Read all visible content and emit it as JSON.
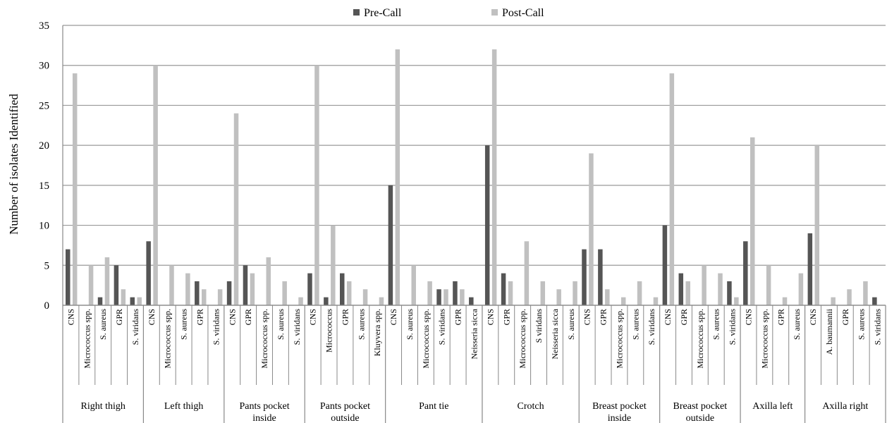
{
  "colors": {
    "pre": "#555555",
    "post": "#c0c0c0",
    "grid": "#999999",
    "axis": "#888888"
  },
  "chart_data": {
    "type": "bar",
    "title": "",
    "xlabel": "",
    "ylabel": "Number of isolates Identified",
    "ylim": [
      0,
      35
    ],
    "yticks": [
      0,
      5,
      10,
      15,
      20,
      25,
      30,
      35
    ],
    "grid": true,
    "legend_position": "top-center",
    "series": [
      {
        "name": "Pre-Call",
        "color": "#555555"
      },
      {
        "name": "Post-Call",
        "color": "#c0c0c0"
      }
    ],
    "groups": [
      {
        "name": "Right thigh",
        "items": [
          {
            "label": "CNS",
            "pre": 7,
            "post": 29
          },
          {
            "label": "Micrococcus spp.",
            "pre": 0,
            "post": 5
          },
          {
            "label": "S. aureus",
            "pre": 1,
            "post": 6
          },
          {
            "label": "GPR",
            "pre": 5,
            "post": 2
          },
          {
            "label": "S. viridans",
            "pre": 1,
            "post": 1
          }
        ]
      },
      {
        "name": "Left thigh",
        "items": [
          {
            "label": "CNS",
            "pre": 8,
            "post": 30
          },
          {
            "label": "Micrococcus spp.",
            "pre": 0,
            "post": 5
          },
          {
            "label": "S. aureus",
            "pre": 0,
            "post": 4
          },
          {
            "label": "GPR",
            "pre": 3,
            "post": 2
          },
          {
            "label": "S. viridans",
            "pre": 0,
            "post": 2
          }
        ]
      },
      {
        "name": "Pants pocket inside",
        "items": [
          {
            "label": "CNS",
            "pre": 3,
            "post": 24
          },
          {
            "label": "GPR",
            "pre": 5,
            "post": 4
          },
          {
            "label": "Micrococcus spp.",
            "pre": 0,
            "post": 6
          },
          {
            "label": "S. aureus",
            "pre": 0,
            "post": 3
          },
          {
            "label": "S. viridans",
            "pre": 0,
            "post": 1
          }
        ]
      },
      {
        "name": "Pants pocket outside",
        "items": [
          {
            "label": "CNS",
            "pre": 4,
            "post": 30
          },
          {
            "label": "Micrococcus",
            "pre": 1,
            "post": 10
          },
          {
            "label": "GPR",
            "pre": 4,
            "post": 3
          },
          {
            "label": "S. aureus",
            "pre": 0,
            "post": 2
          },
          {
            "label": "Kluyvera spp.",
            "pre": 0,
            "post": 1
          }
        ]
      },
      {
        "name": "Pant tie",
        "items": [
          {
            "label": "CNS",
            "pre": 15,
            "post": 32
          },
          {
            "label": "S. aureus",
            "pre": 0,
            "post": 5
          },
          {
            "label": "Micrococcus spp.",
            "pre": 0,
            "post": 3
          },
          {
            "label": "S. viridans",
            "pre": 2,
            "post": 2
          },
          {
            "label": "GPR",
            "pre": 3,
            "post": 2
          },
          {
            "label": "Neisseria sicca",
            "pre": 1,
            "post": 0
          }
        ]
      },
      {
        "name": "Crotch",
        "items": [
          {
            "label": "CNS",
            "pre": 20,
            "post": 32
          },
          {
            "label": "GPR",
            "pre": 4,
            "post": 3
          },
          {
            "label": "Micrococcus spp.",
            "pre": 0,
            "post": 8
          },
          {
            "label": "S viridans",
            "pre": 0,
            "post": 3
          },
          {
            "label": "Neisseria sicca",
            "pre": 0,
            "post": 2
          },
          {
            "label": "S. aureus",
            "pre": 0,
            "post": 3
          }
        ]
      },
      {
        "name": "Breast pocket inside",
        "items": [
          {
            "label": "CNS",
            "pre": 7,
            "post": 19
          },
          {
            "label": "GPR",
            "pre": 7,
            "post": 2
          },
          {
            "label": "Micrococcus spp.",
            "pre": 0,
            "post": 1
          },
          {
            "label": "S. aureus",
            "pre": 0,
            "post": 3
          },
          {
            "label": "S. viridans",
            "pre": 0,
            "post": 1
          }
        ]
      },
      {
        "name": "Breast pocket outside",
        "items": [
          {
            "label": "CNS",
            "pre": 10,
            "post": 29
          },
          {
            "label": "GPR",
            "pre": 4,
            "post": 3
          },
          {
            "label": "Micrococcus spp.",
            "pre": 0,
            "post": 5
          },
          {
            "label": "S. aureus",
            "pre": 0,
            "post": 4
          },
          {
            "label": "S. viridans",
            "pre": 3,
            "post": 1
          }
        ]
      },
      {
        "name": "Axilla left",
        "items": [
          {
            "label": "CNS",
            "pre": 8,
            "post": 21
          },
          {
            "label": "Micrococcus spp.",
            "pre": 0,
            "post": 5
          },
          {
            "label": "GPR",
            "pre": 0,
            "post": 1
          },
          {
            "label": "S. aureus",
            "pre": 0,
            "post": 4
          }
        ]
      },
      {
        "name": "Axilla right",
        "items": [
          {
            "label": "CNS",
            "pre": 9,
            "post": 20
          },
          {
            "label": "A. baumannii",
            "pre": 0,
            "post": 1
          },
          {
            "label": "GPR",
            "pre": 0,
            "post": 2
          },
          {
            "label": "S. aureus",
            "pre": 0,
            "post": 3
          },
          {
            "label": "S. viridans",
            "pre": 1,
            "post": 0
          }
        ]
      }
    ]
  }
}
